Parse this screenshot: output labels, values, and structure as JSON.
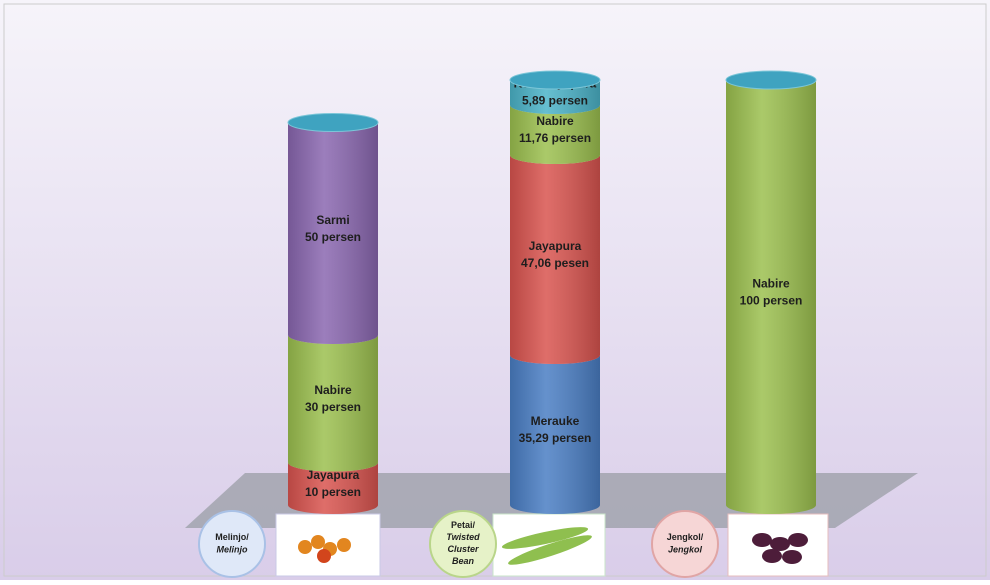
{
  "chart_data": {
    "type": "stacked_cylinder",
    "categories": [
      "Melinjo/",
      "Petai/",
      "Jengkol/"
    ],
    "category_subtitles": [
      "Melinjo",
      "Twisted Cluster Bean",
      "Jengkol"
    ],
    "series": [
      {
        "name": "Merauke",
        "color": "#4a7ec4",
        "values": [
          null,
          35.29,
          null
        ],
        "value_labels": [
          null,
          "35,29 persen",
          null
        ]
      },
      {
        "name": "Jayapura",
        "color": "#d9544f",
        "values": [
          10,
          47.06,
          null
        ],
        "value_labels": [
          "10 persen",
          "47,06 pesen",
          null
        ]
      },
      {
        "name": "Nabire",
        "color": "#9cc04f",
        "values": [
          30,
          11.76,
          100
        ],
        "value_labels": [
          "30 persen",
          "11,76 persen",
          "100 persen"
        ]
      },
      {
        "name": "Sarmi",
        "color": "#8a67b0",
        "values": [
          50,
          null,
          null
        ],
        "value_labels": [
          "50 persen",
          null,
          null
        ]
      },
      {
        "name": "Kota Jayapura",
        "color": "#4bb3c8",
        "values": [
          null,
          5.89,
          null
        ],
        "value_labels": [
          null,
          "5,89 persen",
          null
        ]
      }
    ],
    "ylim": [
      0,
      100
    ]
  }
}
